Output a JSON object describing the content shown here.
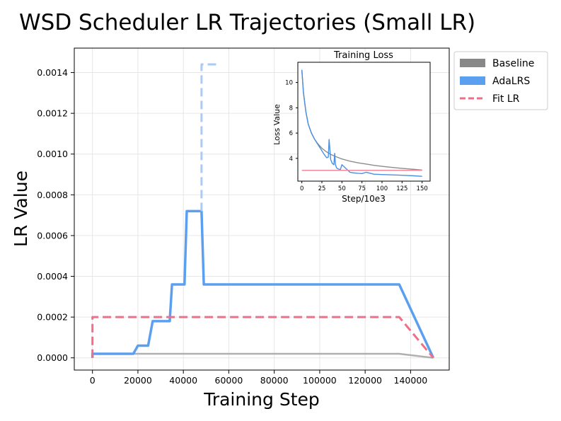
{
  "chart_data": [
    {
      "type": "line",
      "title": "WSD Scheduler LR Trajectories (Small LR)",
      "xlabel": "Training Step",
      "ylabel": "LR Value",
      "xlim": [
        -8000,
        157000
      ],
      "ylim": [
        -6e-05,
        0.00152
      ],
      "xticks": [
        0,
        20000,
        40000,
        60000,
        80000,
        100000,
        120000,
        140000
      ],
      "xtick_labels": [
        "0",
        "20000",
        "40000",
        "60000",
        "80000",
        "100000",
        "120000",
        "140000"
      ],
      "yticks": [
        0.0,
        0.0002,
        0.0004,
        0.0006,
        0.0008,
        0.001,
        0.0012,
        0.0014
      ],
      "ytick_labels": [
        "0.0000",
        "0.0002",
        "0.0004",
        "0.0006",
        "0.0008",
        "0.0010",
        "0.0012",
        "0.0014"
      ],
      "grid": true,
      "legend": {
        "position": "outside-top-right",
        "entries": [
          {
            "label": "Baseline",
            "color": "#888888",
            "style": "patch"
          },
          {
            "label": "AdaLRS",
            "color": "#5b9ff0",
            "style": "patch"
          },
          {
            "label": "Fit LR",
            "color": "#ef6f86",
            "style": "dashed"
          }
        ]
      },
      "series": [
        {
          "name": "Baseline",
          "color": "#b0b0b0",
          "style": "solid",
          "x": [
            0,
            0,
            135000,
            150000
          ],
          "y": [
            0,
            2e-05,
            2e-05,
            0
          ]
        },
        {
          "name": "AdaLRS",
          "color": "#5b9ff0",
          "style": "solid",
          "x": [
            0,
            0,
            18000,
            20000,
            24500,
            26500,
            31500,
            34000,
            35000,
            40500,
            41500,
            47000,
            48000,
            49000,
            50000,
            135000,
            150000
          ],
          "y": [
            0,
            2e-05,
            2e-05,
            6e-05,
            6e-05,
            0.00018,
            0.00018,
            0.00018,
            0.00036,
            0.00036,
            0.00072,
            0.00072,
            0.00072,
            0.00036,
            0.00036,
            0.00036,
            0
          ]
        },
        {
          "name": "AdaLRS (explored)",
          "color": "#a9cbf5",
          "style": "dashed",
          "x": [
            48000,
            48000,
            49000,
            55000
          ],
          "y": [
            0.00072,
            0.00144,
            0.00144,
            0.00144
          ]
        },
        {
          "name": "Fit LR",
          "color": "#ef6f86",
          "style": "dashed",
          "x": [
            0,
            0,
            135000,
            150000
          ],
          "y": [
            0,
            0.0002,
            0.0002,
            0
          ]
        }
      ]
    },
    {
      "type": "line",
      "title": "Training Loss",
      "xlabel": "Step/10e3",
      "ylabel": "Loss Value",
      "xlim": [
        -5,
        160
      ],
      "ylim": [
        2.2,
        11.6
      ],
      "xticks": [
        0,
        25,
        50,
        75,
        100,
        125,
        150
      ],
      "xtick_labels": [
        "0",
        "25",
        "50",
        "75",
        "100",
        "125",
        "150"
      ],
      "yticks": [
        4,
        6,
        8,
        10
      ],
      "ytick_labels": [
        "4",
        "6",
        "8",
        "10"
      ],
      "grid": false,
      "series": [
        {
          "name": "Baseline",
          "color": "#8c8c8c",
          "x": [
            0,
            2,
            5,
            8,
            12,
            16,
            20,
            25,
            30,
            35,
            40,
            50,
            60,
            70,
            80,
            90,
            100,
            110,
            120,
            130,
            140,
            150
          ],
          "y": [
            11.0,
            9.2,
            7.7,
            6.7,
            6.0,
            5.5,
            5.15,
            4.8,
            4.55,
            4.35,
            4.2,
            3.95,
            3.78,
            3.65,
            3.55,
            3.45,
            3.37,
            3.3,
            3.24,
            3.18,
            3.13,
            3.08
          ]
        },
        {
          "name": "AdaLRS",
          "color": "#4a90e2",
          "x": [
            0,
            2,
            5,
            8,
            12,
            16,
            20,
            22,
            25,
            28,
            31,
            33,
            34,
            35,
            36,
            38,
            40,
            41,
            42,
            43,
            44,
            46,
            48,
            50,
            55,
            60,
            65,
            70,
            75,
            80,
            90,
            100,
            110,
            120,
            130,
            140,
            150
          ],
          "y": [
            11.0,
            9.2,
            7.7,
            6.7,
            6.0,
            5.5,
            5.1,
            4.9,
            4.6,
            4.3,
            4.05,
            4.1,
            5.5,
            4.7,
            3.9,
            3.6,
            3.5,
            4.4,
            3.5,
            3.3,
            3.2,
            3.15,
            3.1,
            3.5,
            3.2,
            2.9,
            2.85,
            2.82,
            2.8,
            2.9,
            2.75,
            2.72,
            2.7,
            2.68,
            2.65,
            2.62,
            2.58
          ]
        },
        {
          "name": "Fit LR",
          "color": "#f0899b",
          "x": [
            0,
            150
          ],
          "y": [
            3.05,
            3.05
          ]
        }
      ]
    }
  ]
}
